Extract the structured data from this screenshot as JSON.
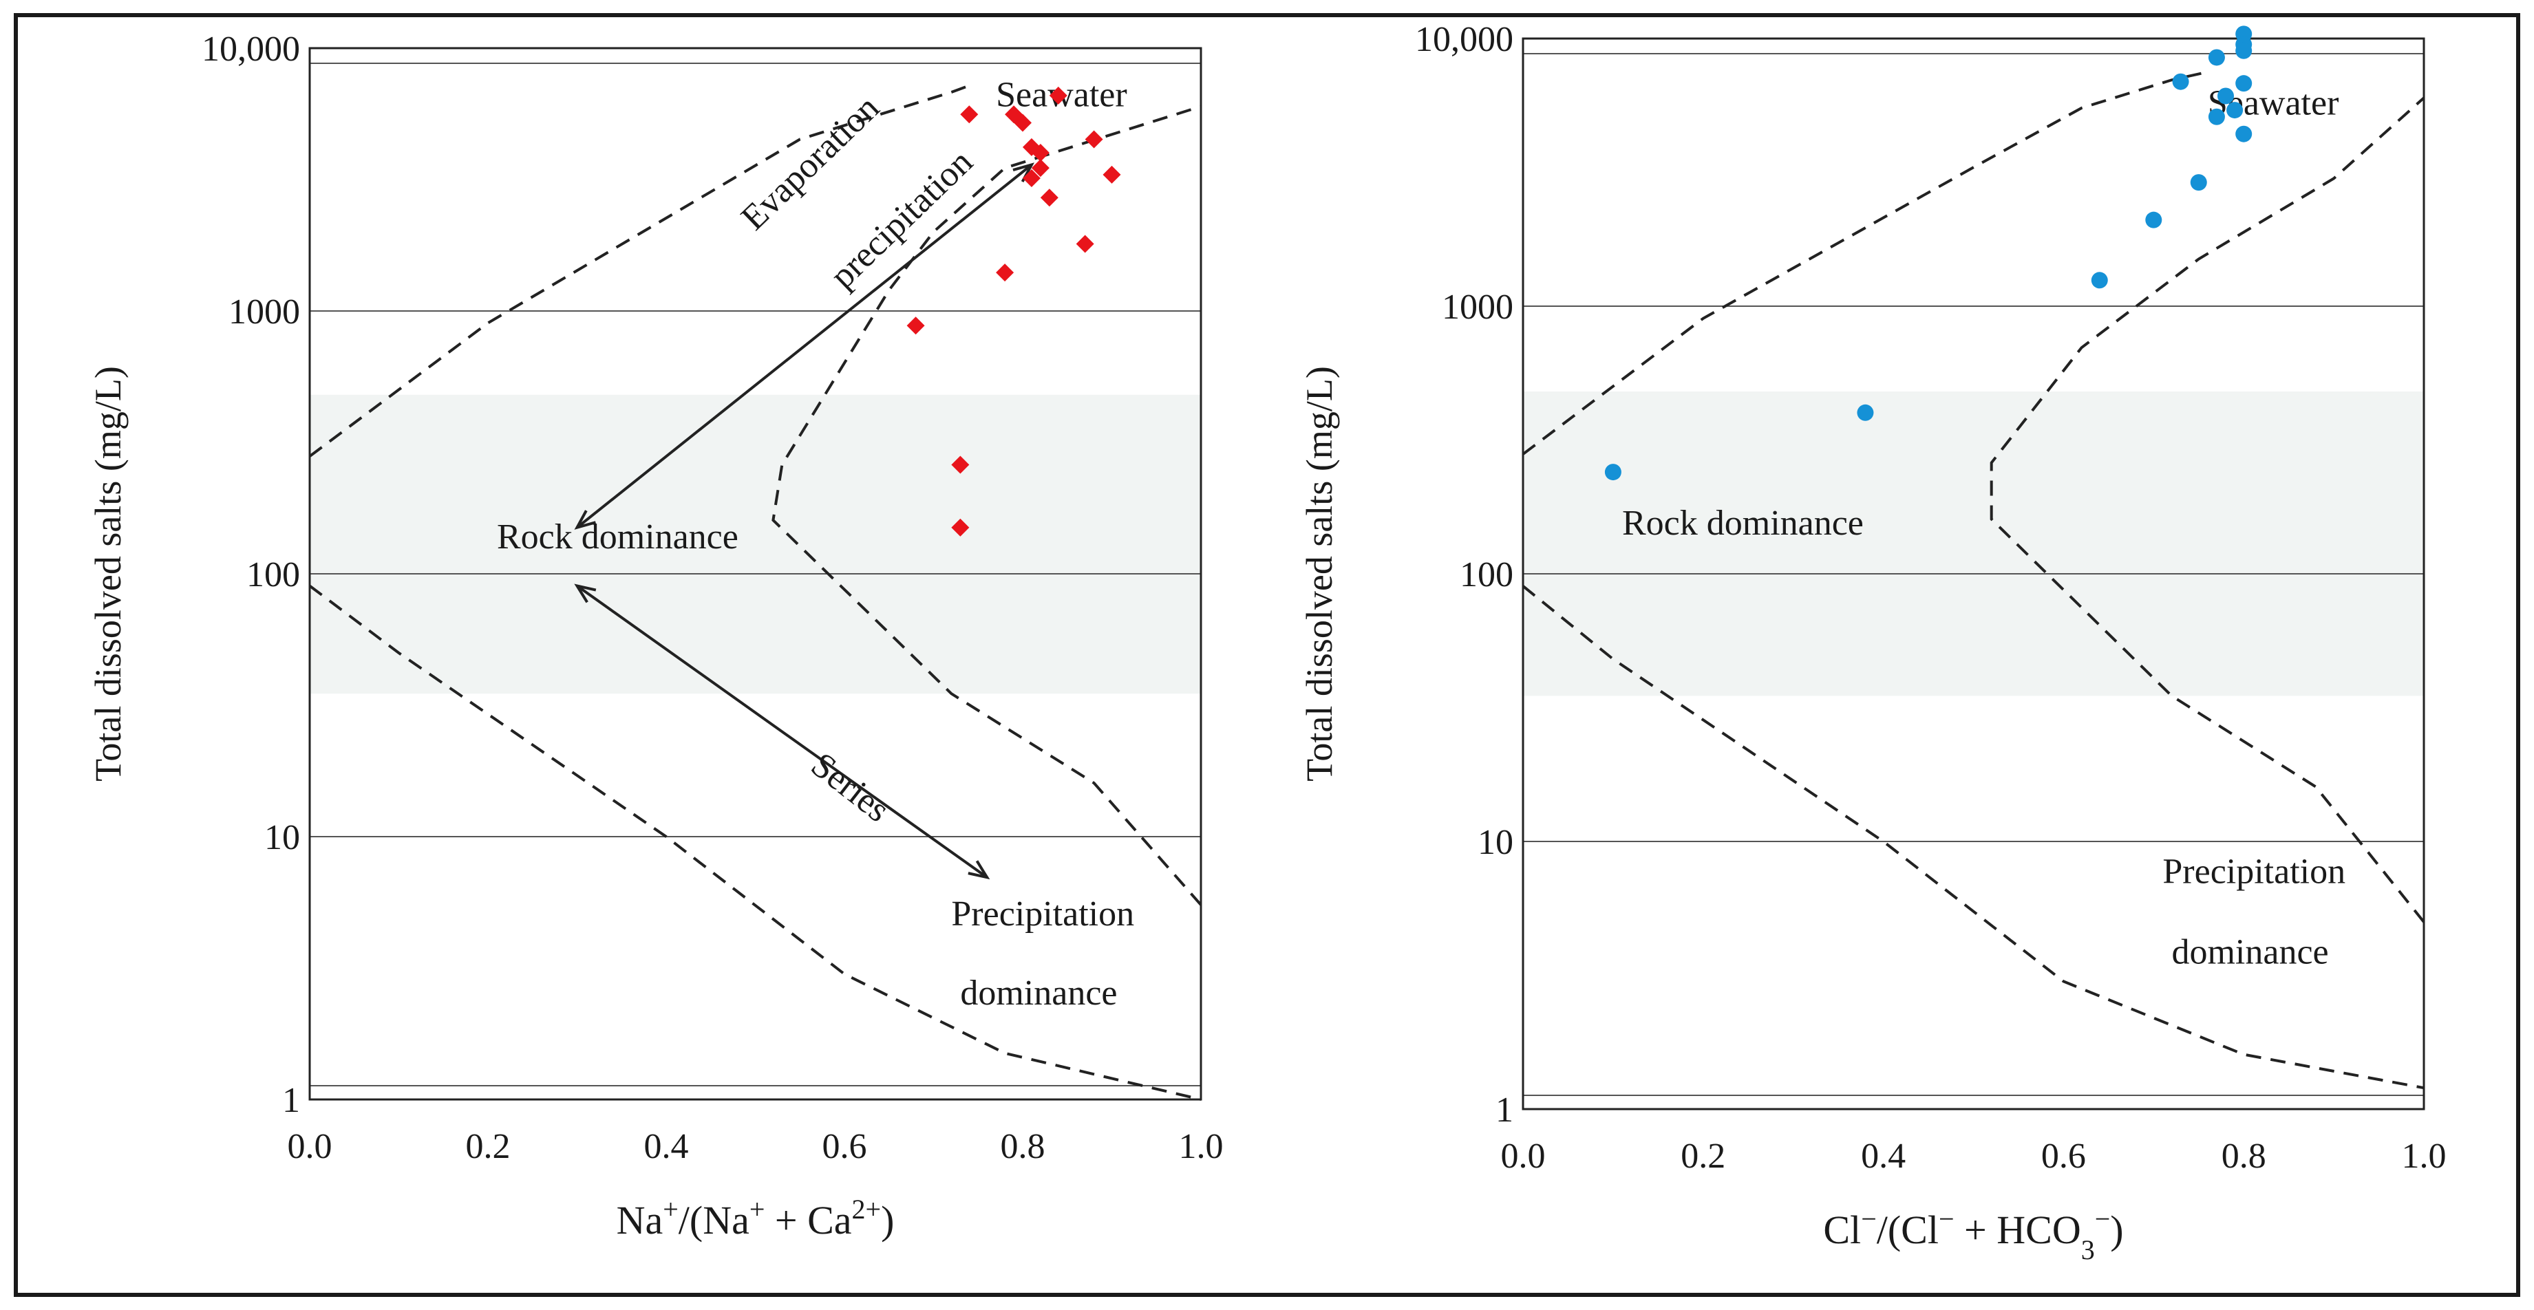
{
  "figure": {
    "panel_count": 2
  },
  "colors": {
    "left_marker": "#e8141b",
    "right_marker": "#1591d6",
    "band": "#f1f4f3",
    "line": "#222222"
  },
  "chart_data": [
    {
      "type": "scatter",
      "title": "",
      "xlabel_parts": [
        "Na",
        "+",
        "/(Na",
        "+",
        " + Ca",
        "2+",
        ")"
      ],
      "ylabel": "Total dissolved salts (mg/L)",
      "xlim": [
        0.0,
        1.0
      ],
      "ylim": [
        1,
        10000
      ],
      "yscale": "log",
      "x_ticks": [
        "0.0",
        "0.2",
        "0.4",
        "0.6",
        "0.8",
        "1.0"
      ],
      "y_ticks": [
        {
          "value": 1,
          "label": "1"
        },
        {
          "value": 10,
          "label": "10"
        },
        {
          "value": 100,
          "label": "100"
        },
        {
          "value": 1000,
          "label": "1000"
        },
        {
          "value": 10000,
          "label": "10,000"
        }
      ],
      "marker": "diamond",
      "series": [
        {
          "name": "samples",
          "x": [
            0.74,
            0.79,
            0.8,
            0.81,
            0.84,
            0.82,
            0.88,
            0.81,
            0.82,
            0.9,
            0.83,
            0.87,
            0.78,
            0.68,
            0.73,
            0.73
          ],
          "y": [
            5600,
            5600,
            5200,
            4200,
            6600,
            4000,
            4500,
            3200,
            3500,
            3300,
            2700,
            1800,
            1400,
            880,
            260,
            150
          ]
        }
      ],
      "boundary_upper": {
        "x": [
          0.0,
          0.2,
          0.55,
          0.72,
          0.74
        ],
        "y": [
          280,
          900,
          4500,
          6800,
          7200
        ]
      },
      "boundary_lower": {
        "x": [
          0.0,
          0.1,
          0.4,
          0.6,
          0.78,
          1.0
        ],
        "y": [
          90,
          50,
          10,
          3,
          1.5,
          1
        ]
      },
      "boundary_right": {
        "x": [
          1.0,
          0.88,
          0.72,
          0.52,
          0.53,
          0.65,
          0.7,
          0.78,
          1.0
        ],
        "y": [
          5.5,
          16,
          35,
          160,
          260,
          1200,
          2000,
          3500,
          6000
        ]
      },
      "band": {
        "ymin": 35,
        "ymax": 480
      },
      "annotations": [
        {
          "text": "Seawater",
          "x": 0.77,
          "y": 6000
        },
        {
          "text": "Evaporation",
          "x": 0.5,
          "y": 2000,
          "rotate": -44
        },
        {
          "text": "precipitation",
          "x": 0.6,
          "y": 1200,
          "rotate": -44
        },
        {
          "text": "Rock dominance",
          "x": 0.21,
          "y": 125
        },
        {
          "text": "Series",
          "x": 0.56,
          "y": 18,
          "rotate": 38
        },
        {
          "text": "Precipitation",
          "x": 0.72,
          "y": 4.6
        },
        {
          "text": "dominance",
          "x": 0.73,
          "y": 2.3
        }
      ],
      "arrows": [
        {
          "from": [
            0.81,
            3600
          ],
          "to": [
            0.3,
            150
          ]
        },
        {
          "from": [
            0.3,
            90
          ],
          "to": [
            0.76,
            7
          ]
        }
      ]
    },
    {
      "type": "scatter",
      "title": "",
      "xlabel_parts": [
        "Cl",
        "−",
        "/(Cl",
        "−",
        " + HCO",
        "3",
        "−",
        ")"
      ],
      "ylabel": "Total dissolved salts (mg/L)",
      "xlim": [
        0.0,
        1.0
      ],
      "ylim": [
        1,
        10000
      ],
      "yscale": "log",
      "x_ticks": [
        "0.0",
        "0.2",
        "0.4",
        "0.6",
        "0.8",
        "1.0"
      ],
      "y_ticks": [
        {
          "value": 1,
          "label": "1"
        },
        {
          "value": 10,
          "label": "10"
        },
        {
          "value": 100,
          "label": "100"
        },
        {
          "value": 1000,
          "label": "1000"
        },
        {
          "value": 10000,
          "label": "10,000"
        }
      ],
      "marker": "circle",
      "series": [
        {
          "name": "samples",
          "x": [
            0.8,
            0.8,
            0.8,
            0.77,
            0.73,
            0.8,
            0.78,
            0.79,
            0.77,
            0.8,
            0.75,
            0.7,
            0.64,
            0.38,
            0.1
          ],
          "y": [
            10400,
            9500,
            9000,
            8500,
            6900,
            6800,
            6100,
            5400,
            5100,
            4400,
            2900,
            2100,
            1250,
            400,
            240
          ],
          "labels": [
            "",
            "",
            "",
            "",
            "",
            "",
            "",
            "",
            "",
            "",
            "",
            "",
            "",
            "",
            ""
          ]
        }
      ],
      "boundary_upper": {
        "x": [
          0.0,
          0.2,
          0.5,
          0.62,
          0.72,
          0.76
        ],
        "y": [
          280,
          900,
          3300,
          5500,
          7000,
          7500
        ]
      },
      "boundary_lower": {
        "x": [
          0.0,
          0.1,
          0.4,
          0.6,
          0.8,
          1.0
        ],
        "y": [
          90,
          48,
          10,
          3,
          1.6,
          1.2
        ]
      },
      "boundary_right": {
        "x": [
          1.0,
          0.88,
          0.72,
          0.52,
          0.52,
          0.62,
          0.75,
          0.9,
          1.0
        ],
        "y": [
          5,
          16,
          35,
          160,
          260,
          700,
          1500,
          3000,
          6000
        ]
      },
      "band": {
        "ymin": 35,
        "ymax": 480
      },
      "annotations": [
        {
          "text": "Seawater",
          "x": 0.76,
          "y": 5200
        },
        {
          "text": "Rock dominance",
          "x": 0.11,
          "y": 140
        },
        {
          "text": "Precipitation",
          "x": 0.71,
          "y": 7
        },
        {
          "text": "dominance",
          "x": 0.72,
          "y": 3.5
        }
      ],
      "arrows": []
    }
  ]
}
